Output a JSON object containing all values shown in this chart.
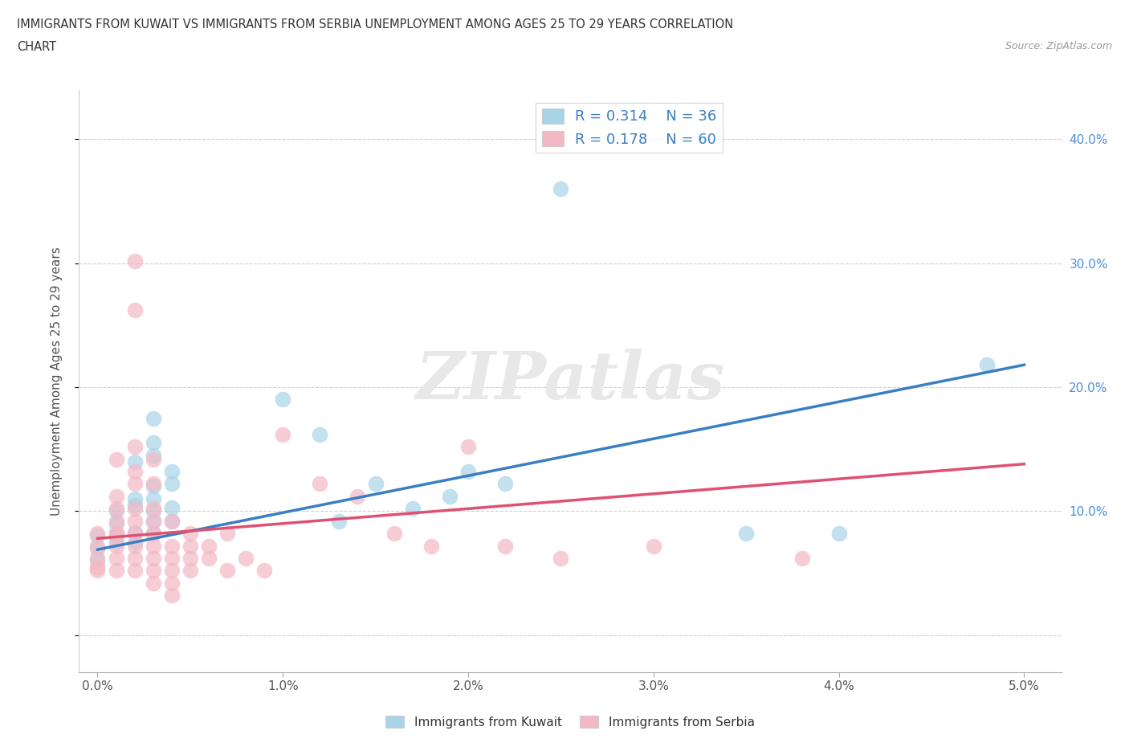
{
  "title_line1": "IMMIGRANTS FROM KUWAIT VS IMMIGRANTS FROM SERBIA UNEMPLOYMENT AMONG AGES 25 TO 29 YEARS CORRELATION",
  "title_line2": "CHART",
  "source": "Source: ZipAtlas.com",
  "ylabel": "Unemployment Among Ages 25 to 29 years",
  "xlim": [
    -0.001,
    0.052
  ],
  "ylim": [
    -0.03,
    0.44
  ],
  "xticks": [
    0.0,
    0.01,
    0.02,
    0.03,
    0.04,
    0.05
  ],
  "yticks": [
    0.0,
    0.1,
    0.2,
    0.3,
    0.4
  ],
  "xticklabels": [
    "0.0%",
    "1.0%",
    "2.0%",
    "3.0%",
    "4.0%",
    "5.0%"
  ],
  "yticklabels_right": [
    "",
    "10.0%",
    "20.0%",
    "30.0%",
    "40.0%"
  ],
  "kuwait_color": "#a8d4e8",
  "serbia_color": "#f4b8c4",
  "kuwait_line_color": "#3a7fc1",
  "serbia_line_color": "#e05070",
  "kuwait_R": 0.314,
  "kuwait_N": 36,
  "serbia_R": 0.178,
  "serbia_N": 60,
  "legend_label_kuwait": "Immigrants from Kuwait",
  "legend_label_serbia": "Immigrants from Serbia",
  "watermark": "ZIPatlas",
  "kuwait_scatter": [
    [
      0.0,
      0.07
    ],
    [
      0.0,
      0.08
    ],
    [
      0.0,
      0.06
    ],
    [
      0.001,
      0.09
    ],
    [
      0.001,
      0.08
    ],
    [
      0.001,
      0.1
    ],
    [
      0.001,
      0.075
    ],
    [
      0.002,
      0.14
    ],
    [
      0.002,
      0.105
    ],
    [
      0.002,
      0.11
    ],
    [
      0.002,
      0.083
    ],
    [
      0.002,
      0.075
    ],
    [
      0.003,
      0.175
    ],
    [
      0.003,
      0.155
    ],
    [
      0.003,
      0.145
    ],
    [
      0.003,
      0.12
    ],
    [
      0.003,
      0.11
    ],
    [
      0.003,
      0.1
    ],
    [
      0.003,
      0.092
    ],
    [
      0.003,
      0.082
    ],
    [
      0.004,
      0.132
    ],
    [
      0.004,
      0.122
    ],
    [
      0.004,
      0.103
    ],
    [
      0.004,
      0.092
    ],
    [
      0.01,
      0.19
    ],
    [
      0.012,
      0.162
    ],
    [
      0.013,
      0.092
    ],
    [
      0.015,
      0.122
    ],
    [
      0.017,
      0.102
    ],
    [
      0.019,
      0.112
    ],
    [
      0.02,
      0.132
    ],
    [
      0.022,
      0.122
    ],
    [
      0.025,
      0.36
    ],
    [
      0.035,
      0.082
    ],
    [
      0.04,
      0.082
    ],
    [
      0.048,
      0.218
    ]
  ],
  "serbia_scatter": [
    [
      0.0,
      0.055
    ],
    [
      0.0,
      0.072
    ],
    [
      0.0,
      0.062
    ],
    [
      0.0,
      0.082
    ],
    [
      0.0,
      0.052
    ],
    [
      0.001,
      0.092
    ],
    [
      0.001,
      0.082
    ],
    [
      0.001,
      0.102
    ],
    [
      0.001,
      0.072
    ],
    [
      0.001,
      0.062
    ],
    [
      0.001,
      0.112
    ],
    [
      0.001,
      0.052
    ],
    [
      0.001,
      0.142
    ],
    [
      0.001,
      0.082
    ],
    [
      0.002,
      0.302
    ],
    [
      0.002,
      0.262
    ],
    [
      0.002,
      0.152
    ],
    [
      0.002,
      0.132
    ],
    [
      0.002,
      0.122
    ],
    [
      0.002,
      0.102
    ],
    [
      0.002,
      0.092
    ],
    [
      0.002,
      0.082
    ],
    [
      0.002,
      0.072
    ],
    [
      0.002,
      0.062
    ],
    [
      0.002,
      0.052
    ],
    [
      0.003,
      0.102
    ],
    [
      0.003,
      0.092
    ],
    [
      0.003,
      0.082
    ],
    [
      0.003,
      0.072
    ],
    [
      0.003,
      0.062
    ],
    [
      0.003,
      0.052
    ],
    [
      0.003,
      0.042
    ],
    [
      0.003,
      0.142
    ],
    [
      0.003,
      0.122
    ],
    [
      0.004,
      0.092
    ],
    [
      0.004,
      0.072
    ],
    [
      0.004,
      0.062
    ],
    [
      0.004,
      0.052
    ],
    [
      0.004,
      0.042
    ],
    [
      0.004,
      0.032
    ],
    [
      0.005,
      0.082
    ],
    [
      0.005,
      0.072
    ],
    [
      0.005,
      0.062
    ],
    [
      0.005,
      0.052
    ],
    [
      0.006,
      0.072
    ],
    [
      0.006,
      0.062
    ],
    [
      0.007,
      0.082
    ],
    [
      0.007,
      0.052
    ],
    [
      0.008,
      0.062
    ],
    [
      0.009,
      0.052
    ],
    [
      0.01,
      0.162
    ],
    [
      0.012,
      0.122
    ],
    [
      0.014,
      0.112
    ],
    [
      0.016,
      0.082
    ],
    [
      0.018,
      0.072
    ],
    [
      0.02,
      0.152
    ],
    [
      0.022,
      0.072
    ],
    [
      0.025,
      0.062
    ],
    [
      0.03,
      0.072
    ],
    [
      0.038,
      0.062
    ]
  ],
  "kuwait_trend_x": [
    0.0,
    0.05
  ],
  "kuwait_trend_y": [
    0.069,
    0.218
  ],
  "serbia_trend_x": [
    0.0,
    0.05
  ],
  "serbia_trend_y": [
    0.078,
    0.138
  ]
}
